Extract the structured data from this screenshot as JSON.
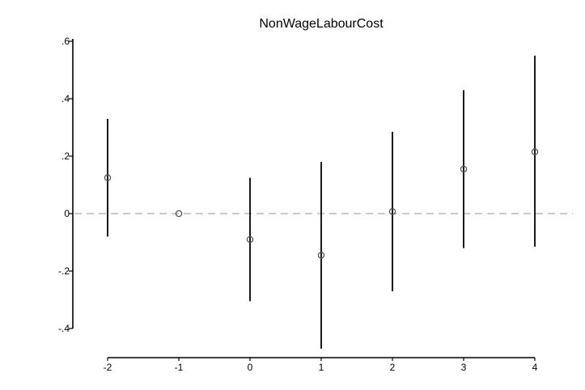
{
  "chart_data": {
    "type": "scatter",
    "title": "NonWageLabourCost",
    "xlabel": "",
    "ylabel": "",
    "x": [
      -2,
      -1,
      0,
      1,
      2,
      3,
      4
    ],
    "x_tick_labels": [
      "-2",
      "-1",
      "0",
      "1",
      "2",
      "3",
      "4"
    ],
    "xlim": [
      -2,
      4
    ],
    "ylim": [
      -0.4,
      0.6
    ],
    "y_ticks": [
      -0.4,
      -0.2,
      0,
      0.2,
      0.4,
      0.6
    ],
    "y_tick_labels": [
      "-.4",
      "-.2",
      "0",
      ".2",
      ".4",
      ".6"
    ],
    "series": [
      {
        "estimates": [
          0.125,
          0,
          -0.09,
          -0.145,
          0.007,
          0.155,
          0.215
        ],
        "ci_lower": [
          -0.08,
          0,
          -0.305,
          -0.47,
          -0.27,
          -0.12,
          -0.115
        ],
        "ci_upper": [
          0.33,
          0,
          0.125,
          0.18,
          0.285,
          0.43,
          0.55
        ]
      }
    ],
    "reference_line": {
      "y": 0,
      "style": "dashed"
    },
    "grid": false,
    "legend": "none",
    "colors": {
      "marker": "#555555",
      "ci": "#000000",
      "reference": "#aaaaaa",
      "axis": "#000000"
    }
  }
}
